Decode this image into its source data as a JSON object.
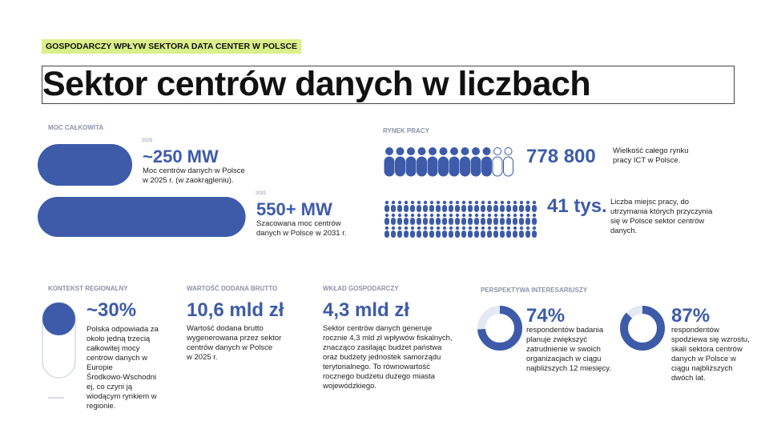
{
  "header": {
    "tag": "GOSPODARCZY WPŁYW SEKTORA DATA CENTER W POLSCE",
    "title": "Sektor centrów danych w liczbach"
  },
  "capacity": {
    "label": "MOC CAŁKOWITA",
    "items": [
      {
        "year": "2025",
        "value": 250,
        "label": "~250 MW",
        "lines": [
          "Moc centrów danych w Polsce",
          "w 2025 r. (w zaokrągleniu)."
        ]
      },
      {
        "year": "2031",
        "value": 550,
        "label": "550+ MW",
        "lines": [
          "Szacowana moc centrów",
          "danych w Polsce w 2031 r."
        ]
      }
    ]
  },
  "labor": {
    "label": "RYNEK PRACY",
    "items": [
      {
        "label": "778 800",
        "lines": [
          "Wielkość całego rynku",
          "pracy ICT w Polsce."
        ]
      },
      {
        "label": "41 tys.",
        "lines": [
          "Liczba miejsc pracy, do",
          "utrzymania których przyczynia",
          "się w Polsce sektor centrów",
          "danych."
        ]
      }
    ]
  },
  "regional": {
    "label": "KONTEKST REGIONALNY",
    "value": "~30%",
    "lines": [
      "Polska odpowiada za",
      "około jedną trzecią",
      "całkowitej mocy",
      "centrów danych w",
      "Europie",
      "Środkowo-Wschodni",
      "ej, co czyni ją",
      "wiodącym rynkiem w",
      "regionie."
    ]
  },
  "gva": {
    "label": "WARTOŚĆ DODANA BRUTTO",
    "value": "10,6 mld zł",
    "lines": [
      "Wartość dodana brutto",
      "wygenerowana przez sektor",
      "centrów danych w Polsce",
      "w 2025 r."
    ]
  },
  "contribution": {
    "label": "WKŁAD GOSPODARCZY",
    "value": "4,3 mld zł",
    "lines": [
      "Sektor centrów danych generuje",
      "rocznie 4,3 mld zł wpływów fiskalnych,",
      "znacząco zasilając budżet państwa",
      "oraz budżety jednostek samorządu",
      "terytorialnego. To równowartość",
      "rocznego budżetu dużego miasta",
      "wojewódzkiego."
    ]
  },
  "stakeholders": {
    "label": "PERSPEKTYWA INTERESARIUSZY",
    "items": [
      {
        "value": 74,
        "label": "74%",
        "lines": [
          "respondentów badania",
          "planuje zwiększyć",
          "zatrudnienie w swoich",
          "organizacjach w ciągu",
          "najbliższych 12 miesięcy."
        ]
      },
      {
        "value": 87,
        "label": "87%",
        "lines": [
          "respondentów",
          "spodziewa się wzrostu,",
          "skali sektora centrów",
          "danych w Polsce w",
          "ciągu najbliższych",
          "dwóch lat."
        ]
      }
    ]
  }
}
